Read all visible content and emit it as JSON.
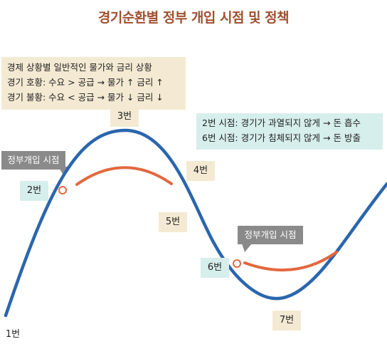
{
  "title": "경기순환별 정부 개입 시점 및 정책",
  "notes": {
    "market": [
      "경제 상황별 일반적인 물가와 금리 상황",
      "경기 호황: 수요 > 공급 → 물가 ↑ 금리 ↑",
      "경기 불황: 수요 < 공급 → 물가 ↓ 금리 ↓"
    ],
    "policy": [
      "2번 시점: 경기가 과열되지 않게 → 돈 흡수",
      "6번 시점: 경기가 침체되지 않게 → 돈 방출"
    ]
  },
  "points": {
    "p1": "1번",
    "p2": "2번",
    "p3": "3번",
    "p4": "4번",
    "p5": "5번",
    "p6": "6번",
    "p7": "7번"
  },
  "tags": {
    "intervention_1": "정부개입 시점",
    "intervention_2": "정부개입 시점"
  },
  "colors": {
    "cycle_curve": "#2a66ad",
    "policy_curve": "#e2683e",
    "title": "#a0502f",
    "beige_box": "#f4ead3",
    "teal_box": "#d6eeec",
    "tag_box": "#8a8a8a"
  }
}
